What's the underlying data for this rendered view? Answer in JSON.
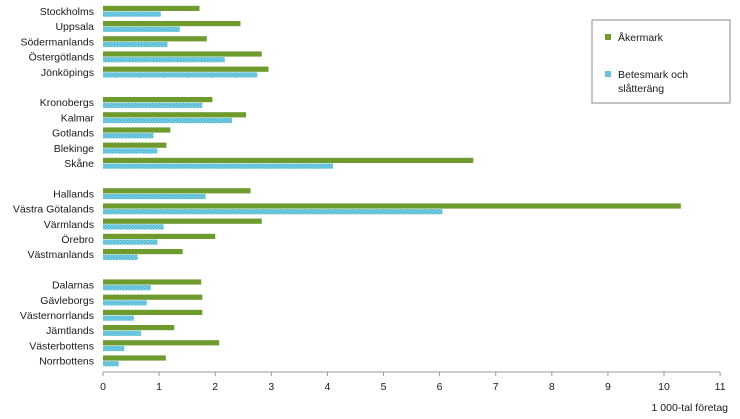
{
  "colors": {
    "akermark": "#6e9a2e",
    "betesmark": "#4bb7d3",
    "axis": "#9a9a9a",
    "text": "#1a1a1a"
  },
  "chart_data": {
    "type": "bar",
    "orientation": "horizontal",
    "title": "",
    "xlabel": "1 000-tal företag",
    "ylabel": "",
    "xlim": [
      0,
      11
    ],
    "xticks": [
      "0",
      "1",
      "2",
      "3",
      "4",
      "5",
      "6",
      "7",
      "8",
      "9",
      "10",
      "11"
    ],
    "grid": false,
    "legend_position": "top-right",
    "groups": [
      [
        "Stockholms",
        "Uppsala",
        "Södermanlands",
        "Östergötlands",
        "Jönköpings"
      ],
      [
        "Kronobergs",
        "Kalmar",
        "Gotlands",
        "Blekinge",
        "Skåne"
      ],
      [
        "Hallands",
        "Västra Götalands",
        "Värmlands",
        "Örebro",
        "Västmanlands"
      ],
      [
        "Dalarnas",
        "Gävleborgs",
        "Västernorrlands",
        "Jämtlands",
        "Västerbottens",
        "Norrbottens"
      ]
    ],
    "categories": [
      "Stockholms",
      "Uppsala",
      "Södermanlands",
      "Östergötlands",
      "Jönköpings",
      "Kronobergs",
      "Kalmar",
      "Gotlands",
      "Blekinge",
      "Skåne",
      "Hallands",
      "Västra Götalands",
      "Värmlands",
      "Örebro",
      "Västmanlands",
      "Dalarnas",
      "Gävleborgs",
      "Västernorrlands",
      "Jämtlands",
      "Västerbottens",
      "Norrbottens"
    ],
    "series": [
      {
        "name": "Åkermark",
        "color_key": "akermark",
        "values": [
          1.72,
          2.45,
          1.85,
          2.83,
          2.95,
          1.95,
          2.55,
          1.2,
          1.13,
          6.6,
          2.63,
          10.3,
          2.83,
          2.0,
          1.42,
          1.75,
          1.77,
          1.77,
          1.27,
          2.07,
          1.12
        ]
      },
      {
        "name": "Betesmark och slåtteräng",
        "color_key": "betesmark",
        "values": [
          1.03,
          1.37,
          1.15,
          2.17,
          2.75,
          1.77,
          2.3,
          0.9,
          0.97,
          4.1,
          1.83,
          6.05,
          1.08,
          0.97,
          0.62,
          0.85,
          0.78,
          0.55,
          0.68,
          0.38,
          0.28
        ]
      }
    ]
  }
}
